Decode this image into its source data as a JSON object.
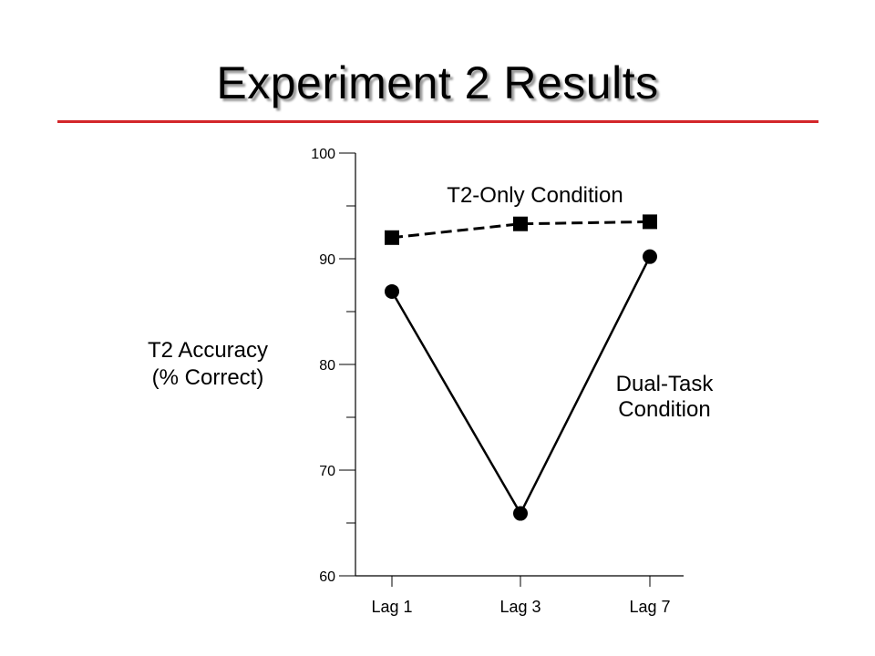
{
  "slide": {
    "title": "Experiment 2 Results",
    "accent_color": "#d3262a"
  },
  "chart_data": {
    "type": "line",
    "categories": [
      "Lag 1",
      "Lag 3",
      "Lag 7"
    ],
    "ylabel": [
      "T2 Accuracy",
      "(% Correct)"
    ],
    "xlabel": "",
    "ylim": [
      60,
      100
    ],
    "y_major_ticks": [
      60,
      70,
      80,
      90,
      100
    ],
    "y_minor_ticks": [
      65,
      75,
      85,
      95
    ],
    "grid": false,
    "series": [
      {
        "name": "T2-Only Condition",
        "values": [
          92,
          93.3,
          93.5
        ],
        "line_style": "dashed",
        "marker": "square",
        "color": "#000000"
      },
      {
        "name": "Dual-Task Condition",
        "name_lines": [
          "Dual-Task",
          "Condition"
        ],
        "values": [
          86.9,
          65.9,
          90.2
        ],
        "line_style": "solid",
        "marker": "circle",
        "color": "#000000"
      }
    ]
  }
}
